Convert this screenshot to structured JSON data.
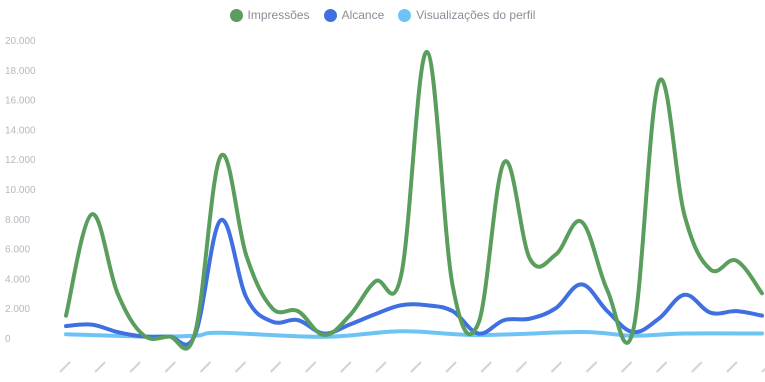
{
  "chart_data": {
    "type": "line",
    "title": "",
    "xlabel": "",
    "ylabel": "",
    "ylim": [
      0,
      20000
    ],
    "yticks": [
      "0",
      "2.000",
      "4.000",
      "6.000",
      "8.000",
      "10.000",
      "12.000",
      "14.000",
      "16.000",
      "18.000",
      "20.000"
    ],
    "x_tick_count": 21,
    "legend_position": "top-center",
    "grid": false,
    "series": [
      {
        "name": "Impressões",
        "color": "#5a9e5e",
        "points": [
          [
            0,
            1500
          ],
          [
            1,
            8300
          ],
          [
            2,
            3000
          ],
          [
            3,
            200
          ],
          [
            4,
            100
          ],
          [
            5,
            300
          ],
          [
            6,
            12200
          ],
          [
            7,
            5500
          ],
          [
            8,
            2000
          ],
          [
            9,
            1800
          ],
          [
            10,
            200
          ],
          [
            11,
            1500
          ],
          [
            12,
            3800
          ],
          [
            13,
            4200
          ],
          [
            14,
            19200
          ],
          [
            15,
            3500
          ],
          [
            16,
            1000
          ],
          [
            17,
            11800
          ],
          [
            18,
            5300
          ],
          [
            19,
            5600
          ],
          [
            20,
            7800
          ],
          [
            21,
            3200
          ],
          [
            22,
            500
          ],
          [
            23,
            17200
          ],
          [
            24,
            8200
          ],
          [
            25,
            4600
          ],
          [
            26,
            5200
          ],
          [
            27,
            3000
          ]
        ]
      },
      {
        "name": "Alcance",
        "color": "#3f6fe0",
        "points": [
          [
            0,
            800
          ],
          [
            1,
            900
          ],
          [
            2,
            400
          ],
          [
            3,
            100
          ],
          [
            4,
            100
          ],
          [
            5,
            200
          ],
          [
            6,
            7900
          ],
          [
            7,
            2700
          ],
          [
            8,
            1100
          ],
          [
            9,
            1200
          ],
          [
            10,
            300
          ],
          [
            11,
            900
          ],
          [
            12,
            1600
          ],
          [
            13,
            2200
          ],
          [
            14,
            2200
          ],
          [
            15,
            1800
          ],
          [
            16,
            300
          ],
          [
            17,
            1200
          ],
          [
            18,
            1300
          ],
          [
            19,
            2000
          ],
          [
            20,
            3600
          ],
          [
            21,
            1800
          ],
          [
            22,
            400
          ],
          [
            23,
            1300
          ],
          [
            24,
            2900
          ],
          [
            25,
            1700
          ],
          [
            26,
            1800
          ],
          [
            27,
            1500
          ]
        ]
      },
      {
        "name": "Visualizações do perfil",
        "color": "#6ec3f5",
        "points": [
          [
            0,
            250
          ],
          [
            3,
            100
          ],
          [
            5,
            150
          ],
          [
            6,
            350
          ],
          [
            10,
            80
          ],
          [
            13,
            450
          ],
          [
            16,
            200
          ],
          [
            20,
            400
          ],
          [
            22,
            150
          ],
          [
            24,
            300
          ],
          [
            27,
            300
          ]
        ]
      }
    ]
  }
}
